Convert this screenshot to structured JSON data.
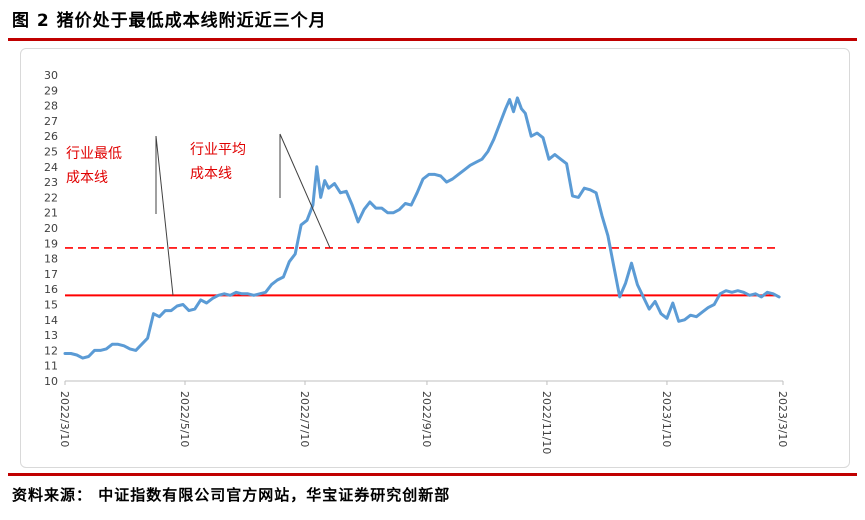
{
  "figure": {
    "title": "图 2  猪价处于最低成本线附近近三个月",
    "source": "资料来源：   中证指数有限公司官方网站，华宝证券研究创新部"
  },
  "colors": {
    "accent_rule": "#c00000",
    "series_line": "#5b9bd5",
    "reference_line": "#ff0000",
    "annotation_text": "#e00000"
  },
  "chart_data": {
    "type": "line",
    "title": "",
    "xlabel": "",
    "ylabel": "",
    "ylim": [
      10,
      30
    ],
    "yticks": [
      10,
      11,
      12,
      13,
      14,
      15,
      16,
      17,
      18,
      19,
      20,
      21,
      22,
      23,
      24,
      25,
      26,
      27,
      28,
      29,
      30
    ],
    "xlim": [
      "2022/3/10",
      "2023/3/10"
    ],
    "xticks": [
      "2022/3/10",
      "2022/5/10",
      "2022/7/10",
      "2022/9/10",
      "2022/11/10",
      "2023/1/10",
      "2023/3/10"
    ],
    "grid": false,
    "legend": "none",
    "series": [
      {
        "points": [
          [
            "2022/3/10",
            11.8
          ],
          [
            "2022/3/13",
            11.8
          ],
          [
            "2022/3/16",
            11.7
          ],
          [
            "2022/3/19",
            11.5
          ],
          [
            "2022/3/22",
            11.6
          ],
          [
            "2022/3/25",
            12.0
          ],
          [
            "2022/3/28",
            12.0
          ],
          [
            "2022/3/31",
            12.1
          ],
          [
            "2022/4/3",
            12.4
          ],
          [
            "2022/4/6",
            12.4
          ],
          [
            "2022/4/9",
            12.3
          ],
          [
            "2022/4/12",
            12.1
          ],
          [
            "2022/4/15",
            12.0
          ],
          [
            "2022/4/18",
            12.4
          ],
          [
            "2022/4/21",
            12.8
          ],
          [
            "2022/4/24",
            14.4
          ],
          [
            "2022/4/27",
            14.2
          ],
          [
            "2022/4/30",
            14.6
          ],
          [
            "2022/5/3",
            14.6
          ],
          [
            "2022/5/6",
            14.9
          ],
          [
            "2022/5/9",
            15.0
          ],
          [
            "2022/5/12",
            14.6
          ],
          [
            "2022/5/15",
            14.7
          ],
          [
            "2022/5/18",
            15.3
          ],
          [
            "2022/5/21",
            15.1
          ],
          [
            "2022/5/24",
            15.4
          ],
          [
            "2022/5/27",
            15.6
          ],
          [
            "2022/5/30",
            15.7
          ],
          [
            "2022/6/2",
            15.6
          ],
          [
            "2022/6/5",
            15.8
          ],
          [
            "2022/6/8",
            15.7
          ],
          [
            "2022/6/11",
            15.7
          ],
          [
            "2022/6/14",
            15.6
          ],
          [
            "2022/6/17",
            15.7
          ],
          [
            "2022/6/20",
            15.8
          ],
          [
            "2022/6/23",
            16.3
          ],
          [
            "2022/6/26",
            16.6
          ],
          [
            "2022/6/29",
            16.8
          ],
          [
            "2022/7/2",
            17.8
          ],
          [
            "2022/7/5",
            18.3
          ],
          [
            "2022/7/8",
            20.2
          ],
          [
            "2022/7/11",
            20.5
          ],
          [
            "2022/7/14",
            21.5
          ],
          [
            "2022/7/16",
            24.0
          ],
          [
            "2022/7/18",
            22.0
          ],
          [
            "2022/7/20",
            23.1
          ],
          [
            "2022/7/22",
            22.6
          ],
          [
            "2022/7/25",
            22.9
          ],
          [
            "2022/7/28",
            22.3
          ],
          [
            "2022/7/31",
            22.4
          ],
          [
            "2022/8/3",
            21.5
          ],
          [
            "2022/8/6",
            20.4
          ],
          [
            "2022/8/9",
            21.2
          ],
          [
            "2022/8/12",
            21.7
          ],
          [
            "2022/8/15",
            21.3
          ],
          [
            "2022/8/18",
            21.3
          ],
          [
            "2022/8/21",
            21.0
          ],
          [
            "2022/8/24",
            21.0
          ],
          [
            "2022/8/27",
            21.2
          ],
          [
            "2022/8/30",
            21.6
          ],
          [
            "2022/9/2",
            21.5
          ],
          [
            "2022/9/5",
            22.3
          ],
          [
            "2022/9/8",
            23.2
          ],
          [
            "2022/9/11",
            23.5
          ],
          [
            "2022/9/14",
            23.5
          ],
          [
            "2022/9/17",
            23.4
          ],
          [
            "2022/9/20",
            23.0
          ],
          [
            "2022/9/23",
            23.2
          ],
          [
            "2022/9/26",
            23.5
          ],
          [
            "2022/9/29",
            23.8
          ],
          [
            "2022/10/2",
            24.1
          ],
          [
            "2022/10/5",
            24.3
          ],
          [
            "2022/10/8",
            24.5
          ],
          [
            "2022/10/11",
            25.0
          ],
          [
            "2022/10/14",
            25.8
          ],
          [
            "2022/10/17",
            26.8
          ],
          [
            "2022/10/20",
            27.8
          ],
          [
            "2022/10/22",
            28.4
          ],
          [
            "2022/10/24",
            27.6
          ],
          [
            "2022/10/26",
            28.5
          ],
          [
            "2022/10/28",
            27.8
          ],
          [
            "2022/10/30",
            27.5
          ],
          [
            "2022/11/2",
            26.0
          ],
          [
            "2022/11/5",
            26.2
          ],
          [
            "2022/11/8",
            25.9
          ],
          [
            "2022/11/11",
            24.5
          ],
          [
            "2022/11/14",
            24.8
          ],
          [
            "2022/11/17",
            24.5
          ],
          [
            "2022/11/20",
            24.2
          ],
          [
            "2022/11/23",
            22.1
          ],
          [
            "2022/11/26",
            22.0
          ],
          [
            "2022/11/29",
            22.6
          ],
          [
            "2022/12/2",
            22.5
          ],
          [
            "2022/12/5",
            22.3
          ],
          [
            "2022/12/8",
            20.8
          ],
          [
            "2022/12/11",
            19.5
          ],
          [
            "2022/12/14",
            17.5
          ],
          [
            "2022/12/17",
            15.5
          ],
          [
            "2022/12/20",
            16.4
          ],
          [
            "2022/12/23",
            17.7
          ],
          [
            "2022/12/26",
            16.3
          ],
          [
            "2022/12/29",
            15.5
          ],
          [
            "2023/1/1",
            14.7
          ],
          [
            "2023/1/4",
            15.2
          ],
          [
            "2023/1/7",
            14.4
          ],
          [
            "2023/1/10",
            14.1
          ],
          [
            "2023/1/13",
            15.1
          ],
          [
            "2023/1/16",
            13.9
          ],
          [
            "2023/1/19",
            14.0
          ],
          [
            "2023/1/22",
            14.3
          ],
          [
            "2023/1/25",
            14.2
          ],
          [
            "2023/1/28",
            14.5
          ],
          [
            "2023/1/31",
            14.8
          ],
          [
            "2023/2/3",
            15.0
          ],
          [
            "2023/2/6",
            15.7
          ],
          [
            "2023/2/9",
            15.9
          ],
          [
            "2023/2/12",
            15.8
          ],
          [
            "2023/2/15",
            15.9
          ],
          [
            "2023/2/18",
            15.8
          ],
          [
            "2023/2/21",
            15.6
          ],
          [
            "2023/2/24",
            15.7
          ],
          [
            "2023/2/27",
            15.5
          ],
          [
            "2023/3/2",
            15.8
          ],
          [
            "2023/3/5",
            15.7
          ],
          [
            "2023/3/8",
            15.5
          ]
        ]
      }
    ],
    "reference_lines": [
      {
        "label": "行业最低成本线",
        "value": 15.6,
        "style": "solid"
      },
      {
        "label": "行业平均成本线",
        "value": 18.7,
        "style": "dashed"
      }
    ],
    "annotations": [
      {
        "lines": [
          "行业最低",
          "成本线"
        ],
        "points_to": "行业最低成本线"
      },
      {
        "lines": [
          "行业平均",
          "成本线"
        ],
        "points_to": "行业平均成本线"
      }
    ]
  }
}
